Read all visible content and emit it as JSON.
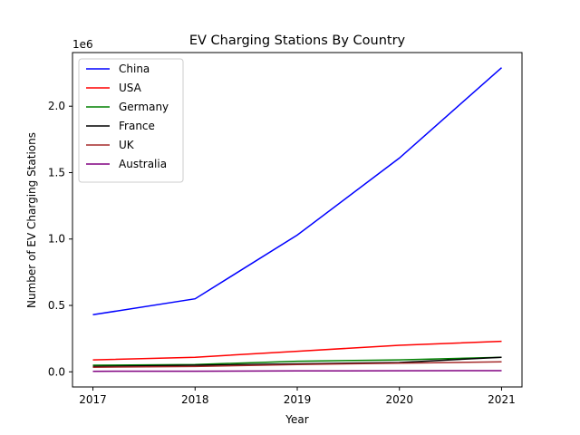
{
  "chart_data": {
    "type": "line",
    "title": "EV Charging Stations By Country",
    "xlabel": "Year",
    "ylabel": "Number of EV Charging Stations",
    "y_offset_label": "1e6",
    "x": [
      2017,
      2018,
      2019,
      2020,
      2021
    ],
    "x_ticks": [
      "2017",
      "2018",
      "2019",
      "2020",
      "2021"
    ],
    "y_ticks": [
      0.0,
      0.5,
      1.0,
      1.5,
      2.0
    ],
    "y_tick_labels": [
      "0.0",
      "0.5",
      "1.0",
      "1.5",
      "2.0"
    ],
    "xlim": [
      2016.8,
      2021.2
    ],
    "ylim": [
      -0.114,
      2.404
    ],
    "legend_position": "upper-left",
    "grid": false,
    "series": [
      {
        "name": "China",
        "color": "#0000ff",
        "values": [
          0.43,
          0.55,
          1.03,
          1.61,
          2.29
        ]
      },
      {
        "name": "USA",
        "color": "#ff0000",
        "values": [
          0.09,
          0.11,
          0.155,
          0.2,
          0.23
        ]
      },
      {
        "name": "Germany",
        "color": "#008000",
        "values": [
          0.05,
          0.055,
          0.08,
          0.09,
          0.11
        ]
      },
      {
        "name": "France",
        "color": "#000000",
        "values": [
          0.04,
          0.05,
          0.06,
          0.07,
          0.11
        ]
      },
      {
        "name": "UK",
        "color": "#a52a2a",
        "values": [
          0.035,
          0.04,
          0.055,
          0.065,
          0.075
        ]
      },
      {
        "name": "Australia",
        "color": "#800080",
        "values": [
          0.004,
          0.005,
          0.007,
          0.008,
          0.009
        ]
      }
    ]
  }
}
